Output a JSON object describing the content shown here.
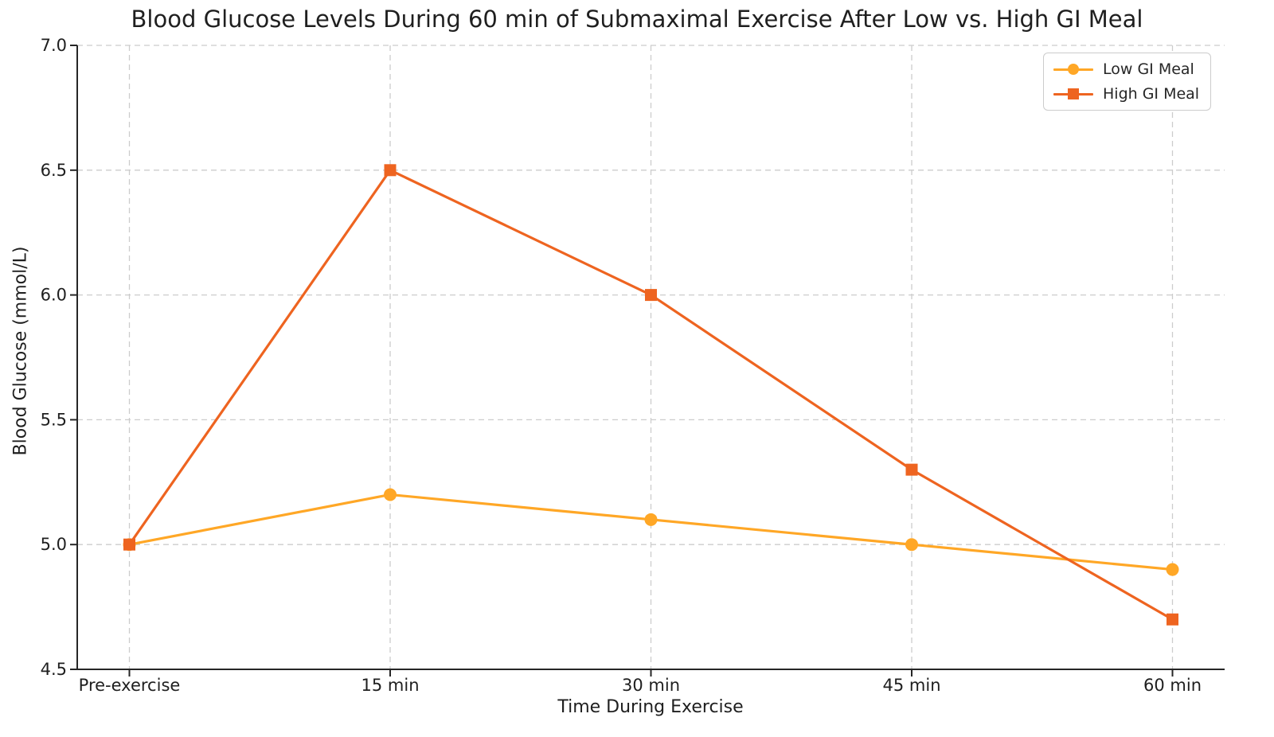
{
  "chart_data": {
    "type": "line",
    "title": "Blood Glucose Levels During 60 min of Submaximal Exercise After Low vs. High GI Meal",
    "xlabel": "Time During Exercise",
    "ylabel": "Blood Glucose (mmol/L)",
    "categories": [
      "Pre-exercise",
      "15 min",
      "30 min",
      "45 min",
      "60 min"
    ],
    "series": [
      {
        "name": "Low GI Meal",
        "values": [
          5.0,
          5.2,
          5.1,
          5.0,
          4.9
        ],
        "color": "#FFA726",
        "marker": "circle"
      },
      {
        "name": "High GI Meal",
        "values": [
          5.0,
          6.5,
          6.0,
          5.3,
          4.7
        ],
        "color": "#EE6420",
        "marker": "square"
      }
    ],
    "ylim": [
      4.5,
      7.0
    ],
    "yticks": [
      "4.5",
      "5.0",
      "5.5",
      "6.0",
      "6.5",
      "7.0"
    ],
    "grid": "dashed",
    "legend_position": "upper right"
  },
  "colors": {
    "grid": "#cccccc",
    "axis": "#262626",
    "tick_text": "#1f1f1f",
    "legend_border": "#cccccc",
    "background": "#ffffff"
  }
}
